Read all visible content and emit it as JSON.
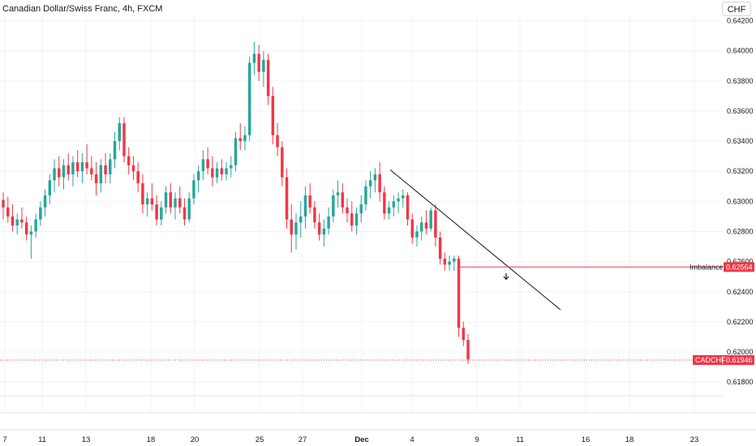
{
  "header": {
    "title": "Canadian Dollar/Swiss Franc, 4h, FXCM",
    "currency_button": "CHF"
  },
  "colors": {
    "up": "#26a69a",
    "down": "#f23645",
    "grid": "#f0f3fa",
    "axis_text": "#131722",
    "trendline": "#131722",
    "level": "#f23645"
  },
  "chart_data": {
    "type": "candlestick",
    "symbol": "CADCHF",
    "y_ticks": [
      0.642,
      0.64,
      0.638,
      0.636,
      0.634,
      0.632,
      0.63,
      0.628,
      0.626,
      0.624,
      0.622,
      0.62,
      0.618
    ],
    "y_tick_labels": [
      "0.64200",
      "0.64000",
      "0.63800",
      "0.63600",
      "0.63400",
      "0.63200",
      "0.63000",
      "0.62800",
      "0.62600",
      "0.62400",
      "0.62200",
      "0.62000",
      "0.61800"
    ],
    "ylim": [
      0.6172,
      0.6423
    ],
    "x_ticks": [
      {
        "label": "7",
        "bold": false
      },
      {
        "label": "11",
        "bold": false
      },
      {
        "label": "13",
        "bold": false
      },
      {
        "label": "18",
        "bold": false
      },
      {
        "label": "20",
        "bold": false
      },
      {
        "label": "25",
        "bold": false
      },
      {
        "label": "27",
        "bold": false
      },
      {
        "label": "Dec",
        "bold": true
      },
      {
        "label": "4",
        "bold": false
      },
      {
        "label": "9",
        "bold": false
      },
      {
        "label": "11",
        "bold": false
      },
      {
        "label": "16",
        "bold": false
      },
      {
        "label": "18",
        "bold": false
      },
      {
        "label": "23",
        "bold": false
      }
    ],
    "imbalance": {
      "label": "Imbalance",
      "value": 0.62564,
      "value_label": "0.62564"
    },
    "last_price": {
      "label": "CADCHF",
      "value": 0.61946,
      "value_label": "0.61946"
    },
    "trendline": [
      {
        "bar": 0,
        "price": 0.6321
      },
      {
        "bar": 1,
        "price": 0.6228
      }
    ],
    "arrow": {
      "direction": "down"
    },
    "candles_note": "approximate OHLC read from chart",
    "candles": [
      [
        0.6301,
        0.6306,
        0.6288,
        0.6296
      ],
      [
        0.6296,
        0.6303,
        0.6286,
        0.629
      ],
      [
        0.629,
        0.6298,
        0.628,
        0.6284
      ],
      [
        0.6284,
        0.6292,
        0.6278,
        0.6288
      ],
      [
        0.6288,
        0.6296,
        0.6282,
        0.6286
      ],
      [
        0.6286,
        0.629,
        0.6274,
        0.6278
      ],
      [
        0.6278,
        0.6284,
        0.6262,
        0.628
      ],
      [
        0.628,
        0.6292,
        0.6276,
        0.6288
      ],
      [
        0.6288,
        0.63,
        0.6284,
        0.6296
      ],
      [
        0.6296,
        0.6308,
        0.629,
        0.6304
      ],
      [
        0.6304,
        0.6318,
        0.6298,
        0.6314
      ],
      [
        0.6314,
        0.6328,
        0.6306,
        0.6322
      ],
      [
        0.6322,
        0.633,
        0.631,
        0.6316
      ],
      [
        0.6316,
        0.6328,
        0.6308,
        0.6324
      ],
      [
        0.6324,
        0.6332,
        0.6314,
        0.6318
      ],
      [
        0.6318,
        0.633,
        0.631,
        0.6326
      ],
      [
        0.6326,
        0.6334,
        0.6316,
        0.632
      ],
      [
        0.632,
        0.6332,
        0.6312,
        0.6326
      ],
      [
        0.6326,
        0.6338,
        0.6318,
        0.6322
      ],
      [
        0.6322,
        0.633,
        0.6314,
        0.6318
      ],
      [
        0.6318,
        0.6326,
        0.6304,
        0.6312
      ],
      [
        0.6312,
        0.6328,
        0.6306,
        0.6324
      ],
      [
        0.6324,
        0.6332,
        0.6312,
        0.6318
      ],
      [
        0.6318,
        0.6332,
        0.6312,
        0.6328
      ],
      [
        0.6328,
        0.6346,
        0.6322,
        0.634
      ],
      [
        0.634,
        0.6356,
        0.6334,
        0.6352
      ],
      [
        0.6352,
        0.6356,
        0.6326,
        0.633
      ],
      [
        0.633,
        0.6336,
        0.6318,
        0.6324
      ],
      [
        0.6324,
        0.633,
        0.6314,
        0.632
      ],
      [
        0.632,
        0.6326,
        0.6306,
        0.6312
      ],
      [
        0.6312,
        0.6318,
        0.6292,
        0.6298
      ],
      [
        0.6298,
        0.6306,
        0.629,
        0.6302
      ],
      [
        0.6302,
        0.6312,
        0.6294,
        0.6298
      ],
      [
        0.6298,
        0.6304,
        0.6284,
        0.6288
      ],
      [
        0.6288,
        0.63,
        0.6284,
        0.6296
      ],
      [
        0.6296,
        0.631,
        0.6292,
        0.6306
      ],
      [
        0.6306,
        0.6312,
        0.6292,
        0.6296
      ],
      [
        0.6296,
        0.6306,
        0.6288,
        0.6302
      ],
      [
        0.6302,
        0.631,
        0.6292,
        0.6296
      ],
      [
        0.6296,
        0.6302,
        0.6284,
        0.6288
      ],
      [
        0.6288,
        0.6306,
        0.6286,
        0.6302
      ],
      [
        0.6302,
        0.6318,
        0.6298,
        0.6314
      ],
      [
        0.6314,
        0.6324,
        0.6306,
        0.632
      ],
      [
        0.632,
        0.6334,
        0.6314,
        0.6328
      ],
      [
        0.6328,
        0.6336,
        0.6318,
        0.6322
      ],
      [
        0.6322,
        0.633,
        0.631,
        0.6316
      ],
      [
        0.6316,
        0.6326,
        0.6312,
        0.6322
      ],
      [
        0.6322,
        0.6328,
        0.6314,
        0.6318
      ],
      [
        0.6318,
        0.6326,
        0.6314,
        0.6322
      ],
      [
        0.6322,
        0.633,
        0.6316,
        0.6324
      ],
      [
        0.6324,
        0.6346,
        0.632,
        0.6342
      ],
      [
        0.6342,
        0.6352,
        0.6334,
        0.634
      ],
      [
        0.634,
        0.635,
        0.6334,
        0.6344
      ],
      [
        0.6344,
        0.6396,
        0.634,
        0.6392
      ],
      [
        0.6392,
        0.6406,
        0.6384,
        0.6398
      ],
      [
        0.6398,
        0.6404,
        0.638,
        0.6386
      ],
      [
        0.6386,
        0.64,
        0.6376,
        0.6394
      ],
      [
        0.6394,
        0.6398,
        0.6364,
        0.637
      ],
      [
        0.637,
        0.6376,
        0.6338,
        0.6344
      ],
      [
        0.6344,
        0.6352,
        0.633,
        0.6336
      ],
      [
        0.6336,
        0.634,
        0.631,
        0.6316
      ],
      [
        0.6316,
        0.6322,
        0.6282,
        0.6288
      ],
      [
        0.6288,
        0.6298,
        0.6266,
        0.6278
      ],
      [
        0.6278,
        0.6292,
        0.6268,
        0.6286
      ],
      [
        0.6286,
        0.63,
        0.6276,
        0.629
      ],
      [
        0.629,
        0.631,
        0.6282,
        0.6304
      ],
      [
        0.6304,
        0.6312,
        0.6292,
        0.6296
      ],
      [
        0.6296,
        0.63,
        0.6282,
        0.6286
      ],
      [
        0.6286,
        0.6292,
        0.6274,
        0.6278
      ],
      [
        0.6278,
        0.6288,
        0.627,
        0.6282
      ],
      [
        0.6282,
        0.6296,
        0.6278,
        0.629
      ],
      [
        0.629,
        0.6308,
        0.6286,
        0.6304
      ],
      [
        0.6304,
        0.6314,
        0.6296,
        0.6306
      ],
      [
        0.6306,
        0.6312,
        0.6292,
        0.6296
      ],
      [
        0.6296,
        0.6302,
        0.6286,
        0.6292
      ],
      [
        0.6292,
        0.63,
        0.628,
        0.6284
      ],
      [
        0.6284,
        0.6296,
        0.6278,
        0.6292
      ],
      [
        0.6292,
        0.6304,
        0.6286,
        0.6298
      ],
      [
        0.6298,
        0.6314,
        0.6294,
        0.631
      ],
      [
        0.631,
        0.632,
        0.6302,
        0.6314
      ],
      [
        0.6314,
        0.6322,
        0.6306,
        0.6318
      ],
      [
        0.6318,
        0.6326,
        0.63,
        0.6306
      ],
      [
        0.6306,
        0.631,
        0.6288,
        0.6292
      ],
      [
        0.6292,
        0.63,
        0.6288,
        0.6296
      ],
      [
        0.6296,
        0.6304,
        0.629,
        0.63
      ],
      [
        0.63,
        0.6306,
        0.6292,
        0.6302
      ],
      [
        0.6302,
        0.6308,
        0.6296,
        0.6304
      ],
      [
        0.6304,
        0.6306,
        0.6284,
        0.6288
      ],
      [
        0.6288,
        0.6292,
        0.6272,
        0.6276
      ],
      [
        0.6276,
        0.6284,
        0.627,
        0.628
      ],
      [
        0.628,
        0.629,
        0.6274,
        0.6286
      ],
      [
        0.6286,
        0.6294,
        0.6278,
        0.6282
      ],
      [
        0.6282,
        0.6296,
        0.628,
        0.6294
      ],
      [
        0.6294,
        0.6298,
        0.627,
        0.6276
      ],
      [
        0.6276,
        0.628,
        0.6258,
        0.6262
      ],
      [
        0.6262,
        0.6266,
        0.6254,
        0.6258
      ],
      [
        0.6258,
        0.6264,
        0.6254,
        0.626
      ],
      [
        0.626,
        0.6264,
        0.6254,
        0.6262
      ],
      [
        0.6262,
        0.6264,
        0.621,
        0.6216
      ],
      [
        0.6216,
        0.622,
        0.6204,
        0.6208
      ],
      [
        0.6208,
        0.6212,
        0.6192,
        0.6195
      ]
    ]
  }
}
